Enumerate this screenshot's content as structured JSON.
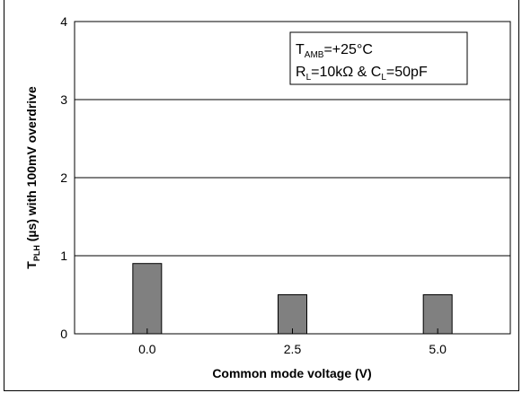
{
  "chart_data": {
    "type": "bar",
    "categories": [
      "0.0",
      "2.5",
      "5.0"
    ],
    "values": [
      0.9,
      0.5,
      0.5
    ],
    "ylim": [
      0,
      4
    ],
    "yticks": [
      "0",
      "1",
      "2",
      "3",
      "4"
    ],
    "xlabel": "Common mode voltage (V)",
    "ylabel": {
      "prefix": "T",
      "sub": "PLH",
      "rest": " (µs) with 100mV overdrive"
    },
    "annotation": {
      "line1": {
        "pre": "T",
        "sub": "AMB",
        "post": "=+25°C"
      },
      "line2": {
        "pre": "R",
        "sub1": "L",
        "mid": "=10kΩ & C",
        "sub2": "L",
        "post": "=50pF"
      }
    },
    "grid": "horizontal major",
    "legend": "none",
    "bar_color": "#808080"
  }
}
